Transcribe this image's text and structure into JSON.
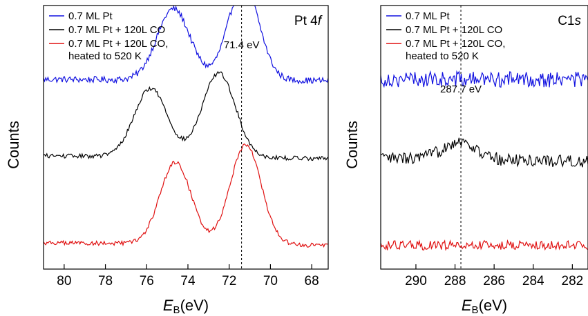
{
  "chart_data": [
    {
      "type": "line",
      "title_main": "Pt 4",
      "title_italic": "f",
      "xlabel_main": "E",
      "xlabel_sub": "B",
      "xlabel_unit": "(eV)",
      "ylabel": "Counts",
      "xlim": [
        81,
        67.2
      ],
      "xticks": [
        "80",
        "78",
        "76",
        "74",
        "72",
        "70",
        "68"
      ],
      "reference_line": {
        "x": 71.4,
        "label": "71.4 eV"
      },
      "legend_position": "top-left",
      "series": [
        {
          "name": "0.7 ML Pt",
          "color": "#1010e0",
          "offset": 0.72,
          "peaks": [
            {
              "x": 74.7,
              "amp": 0.27,
              "w": 0.8
            },
            {
              "x": 71.3,
              "amp": 0.36,
              "w": 0.75
            }
          ],
          "baseline_left": 0.0,
          "baseline_right": -0.005,
          "noise": 0.012
        },
        {
          "name": "0.7 ML Pt + 120L CO",
          "color": "#000000",
          "offset": 0.43,
          "peaks": [
            {
              "x": 75.8,
              "amp": 0.26,
              "w": 0.8
            },
            {
              "x": 72.5,
              "amp": 0.32,
              "w": 0.8
            }
          ],
          "baseline_left": 0.0,
          "baseline_right": -0.01,
          "noise": 0.008
        },
        {
          "name": "0.7 ML Pt + 120L CO,",
          "name_line2": "heated to 520 K",
          "color": "#e01010",
          "offset": 0.1,
          "peaks": [
            {
              "x": 74.6,
              "amp": 0.31,
              "w": 0.75
            },
            {
              "x": 71.2,
              "amp": 0.38,
              "w": 0.75
            }
          ],
          "baseline_left": 0.0,
          "baseline_right": -0.01,
          "noise": 0.008
        }
      ]
    },
    {
      "type": "line",
      "title_main": "C1",
      "title_italic": "s",
      "xlabel_main": "E",
      "xlabel_sub": "B",
      "xlabel_unit": "(eV)",
      "ylabel": "Counts",
      "xlim": [
        291.8,
        281.2
      ],
      "xticks": [
        "290",
        "288",
        "286",
        "284",
        "282"
      ],
      "reference_line": {
        "x": 287.7,
        "label": "287.7 eV"
      },
      "legend_position": "top-left",
      "series": [
        {
          "name": "0.7 ML Pt",
          "color": "#1010e0",
          "offset": 0.72,
          "peaks": [],
          "baseline_left": 0.0,
          "baseline_right": 0.0,
          "noise": 0.03
        },
        {
          "name": "0.7 ML Pt + 120L CO",
          "color": "#000000",
          "offset": 0.42,
          "peaks": [
            {
              "x": 287.8,
              "amp": 0.07,
              "w": 0.8
            }
          ],
          "baseline_left": 0.0,
          "baseline_right": -0.01,
          "noise": 0.025
        },
        {
          "name": "0.7 ML Pt + 120L CO,",
          "name_line2": "heated to 520 K",
          "color": "#e01010",
          "offset": 0.09,
          "peaks": [],
          "baseline_left": 0.0,
          "baseline_right": 0.0,
          "noise": 0.018
        }
      ]
    }
  ]
}
